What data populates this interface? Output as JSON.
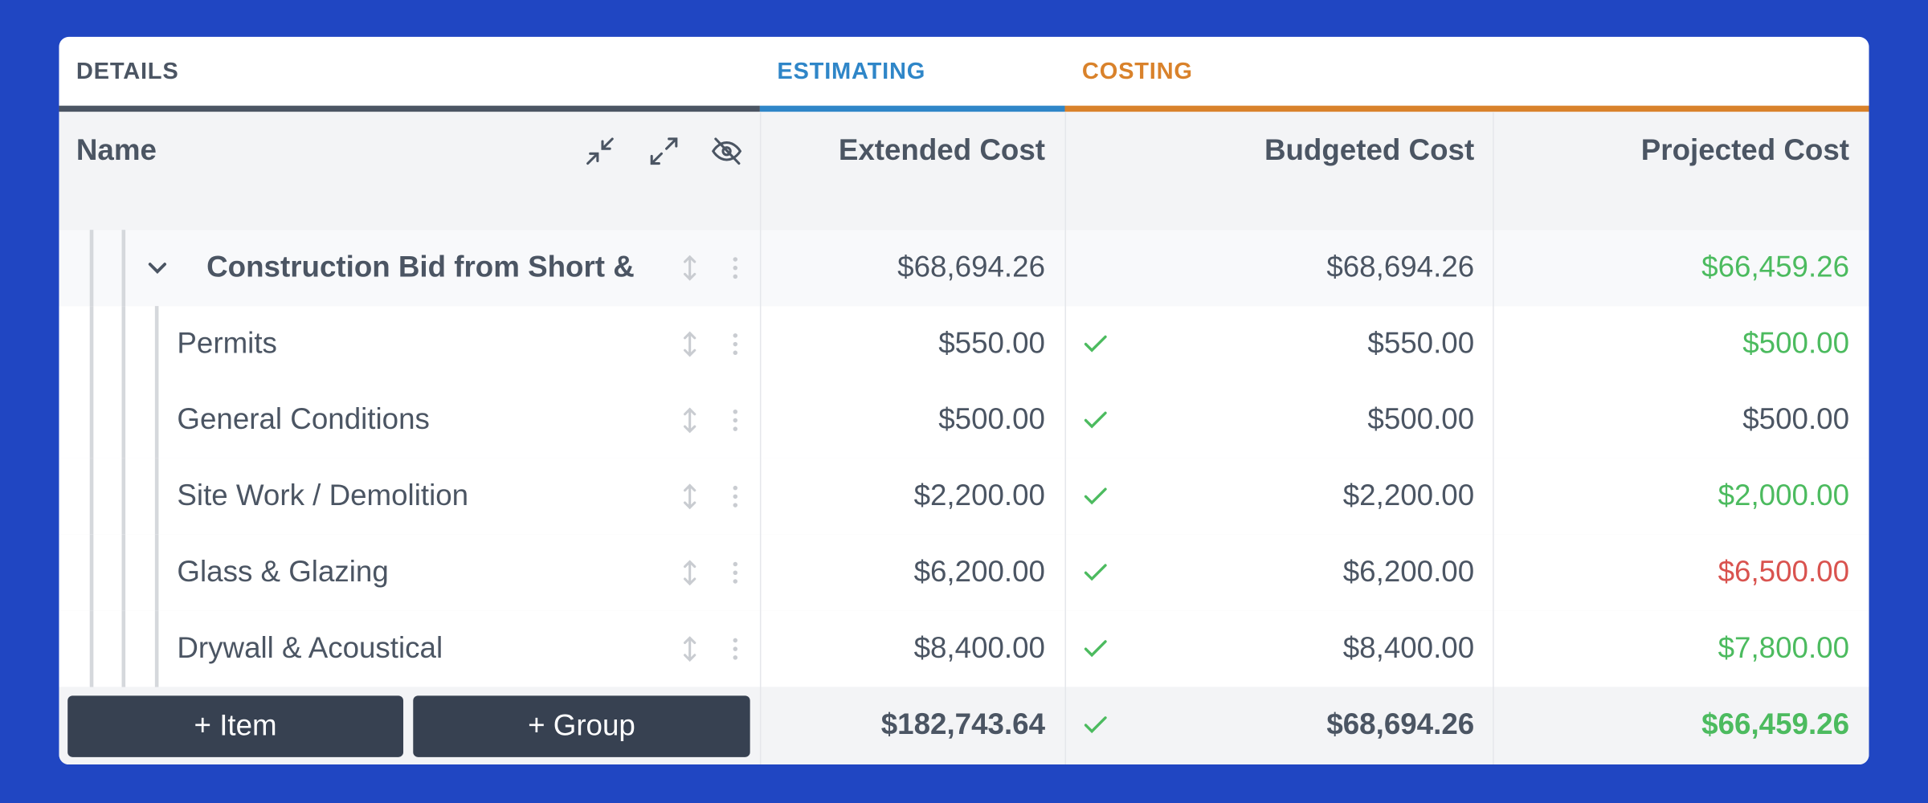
{
  "tabs": [
    "DETAILS",
    "ESTIMATING",
    "COSTING"
  ],
  "columns": [
    "Name",
    "Extended Cost",
    "Budgeted Cost",
    "Projected Cost"
  ],
  "group": {
    "name": "Construction Bid from Short &",
    "extended": "$68,694.26",
    "budgeted": "$68,694.26",
    "projected": "$66,459.26",
    "projected_color": "#4cbb5f"
  },
  "rows": [
    {
      "name": "Permits",
      "extended": "$550.00",
      "budgeted": "$550.00",
      "projected": "$500.00",
      "projected_color": "#4cbb5f"
    },
    {
      "name": "General Conditions",
      "extended": "$500.00",
      "budgeted": "$500.00",
      "projected": "$500.00",
      "projected_color": "#4b5563"
    },
    {
      "name": "Site Work / Demolition",
      "extended": "$2,200.00",
      "budgeted": "$2,200.00",
      "projected": "$2,000.00",
      "projected_color": "#4cbb5f"
    },
    {
      "name": "Glass & Glazing",
      "extended": "$6,200.00",
      "budgeted": "$6,200.00",
      "projected": "$6,500.00",
      "projected_color": "#d9534f"
    },
    {
      "name": "Drywall & Acoustical",
      "extended": "$8,400.00",
      "budgeted": "$8,400.00",
      "projected": "$7,800.00",
      "projected_color": "#4cbb5f"
    }
  ],
  "footer": {
    "buttons": [
      "+ Item",
      "+ Group"
    ],
    "extended": "$182,743.64",
    "budgeted": "$68,694.26",
    "projected": "$66,459.26",
    "projected_color": "#4cbb5f"
  }
}
